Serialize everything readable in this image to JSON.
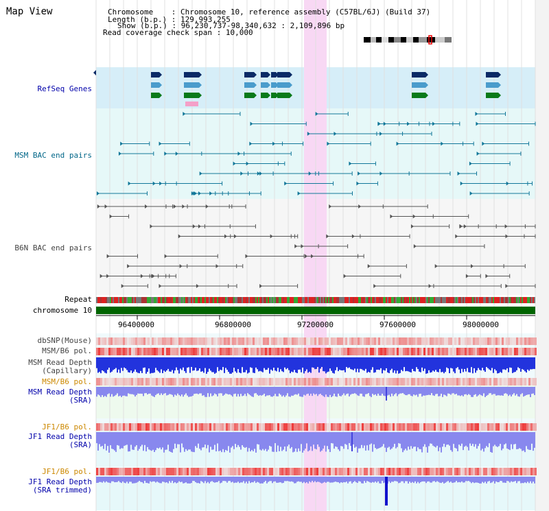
{
  "window": {
    "title": "Map View"
  },
  "header": {
    "chromosome_label": "Chromosome",
    "chromosome_value": "Chromosome 10, reference assembly (C57BL/6J) (Build 37)",
    "length_label": "Length (b.p.)",
    "length_value": "129,993,255",
    "show_label": "Show (b.p.)",
    "show_value": "96,230,737-98,340,632 : 2,109,896 bp",
    "coverage_label": "Read coverage check span",
    "coverage_value": "10,000"
  },
  "tracks": {
    "refseq": "RefSeq Genes",
    "msm_bac": "MSM BAC end pairs",
    "b6n_bac": "B6N BAC end pairs",
    "repeat": "Repeat",
    "chromosome": "chromosome 10",
    "dbsnp": "dbSNP(Mouse)",
    "msm_b6_pol": "MSM/B6 pol.",
    "msm_depth_cap_1": "MSM Read Depth",
    "msm_depth_cap_2": "(Capillary)",
    "msm_b6_pol2": "MSM/B6 pol.",
    "msm_depth_sra_1": "MSM Read Depth",
    "msm_depth_sra_2": "(SRA)",
    "jf1_b6_pol": "JF1/B6 pol.",
    "jf1_depth_1": "JF1 Read Depth",
    "jf1_depth_2": "(SRA)",
    "jf1_b6_pol2": "JF1/B6 pol.",
    "jf1_trim_1": "JF1 Read Depth",
    "jf1_trim_2": "(SRA trimmed)"
  },
  "axis": {
    "ticks": [
      "96400000",
      "96800000",
      "97200000",
      "97600000",
      "98000000"
    ]
  },
  "colors": {
    "refseq_bg": "#d6eef8",
    "msm_bg": "#e6f8f8",
    "b6n_bg": "#f6f6f6",
    "highlight": "#f8d8f4",
    "chrom_bar": "#006400",
    "depth_blue": "#2233dd",
    "depth_light": "#8888ee",
    "pol_red": "#ee3333"
  }
}
